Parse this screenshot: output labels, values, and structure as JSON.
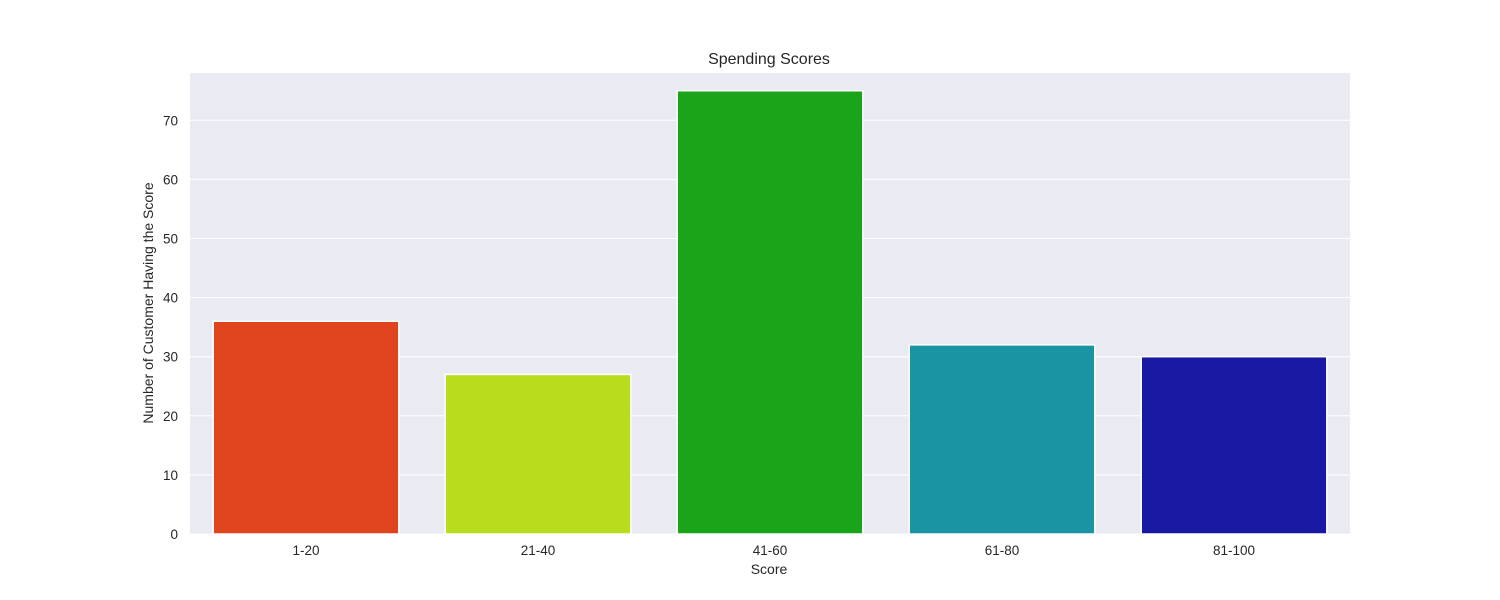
{
  "chart_data": {
    "type": "bar",
    "title": "Spending Scores",
    "xlabel": "Score",
    "ylabel": "Number of Customer Having the Score",
    "categories": [
      "1-20",
      "21-40",
      "41-60",
      "61-80",
      "81-100"
    ],
    "values": [
      36,
      27,
      75,
      32,
      30
    ],
    "colors": [
      "#e0441f",
      "#b8dd1d",
      "#19a419",
      "#1a93a3",
      "#1818a3"
    ],
    "ylim": [
      0,
      78
    ],
    "yticks": [
      0,
      10,
      20,
      30,
      40,
      50,
      60,
      70
    ],
    "grid": true,
    "background_color": "#eaeaf2",
    "gridline_color": "#ffffff"
  }
}
